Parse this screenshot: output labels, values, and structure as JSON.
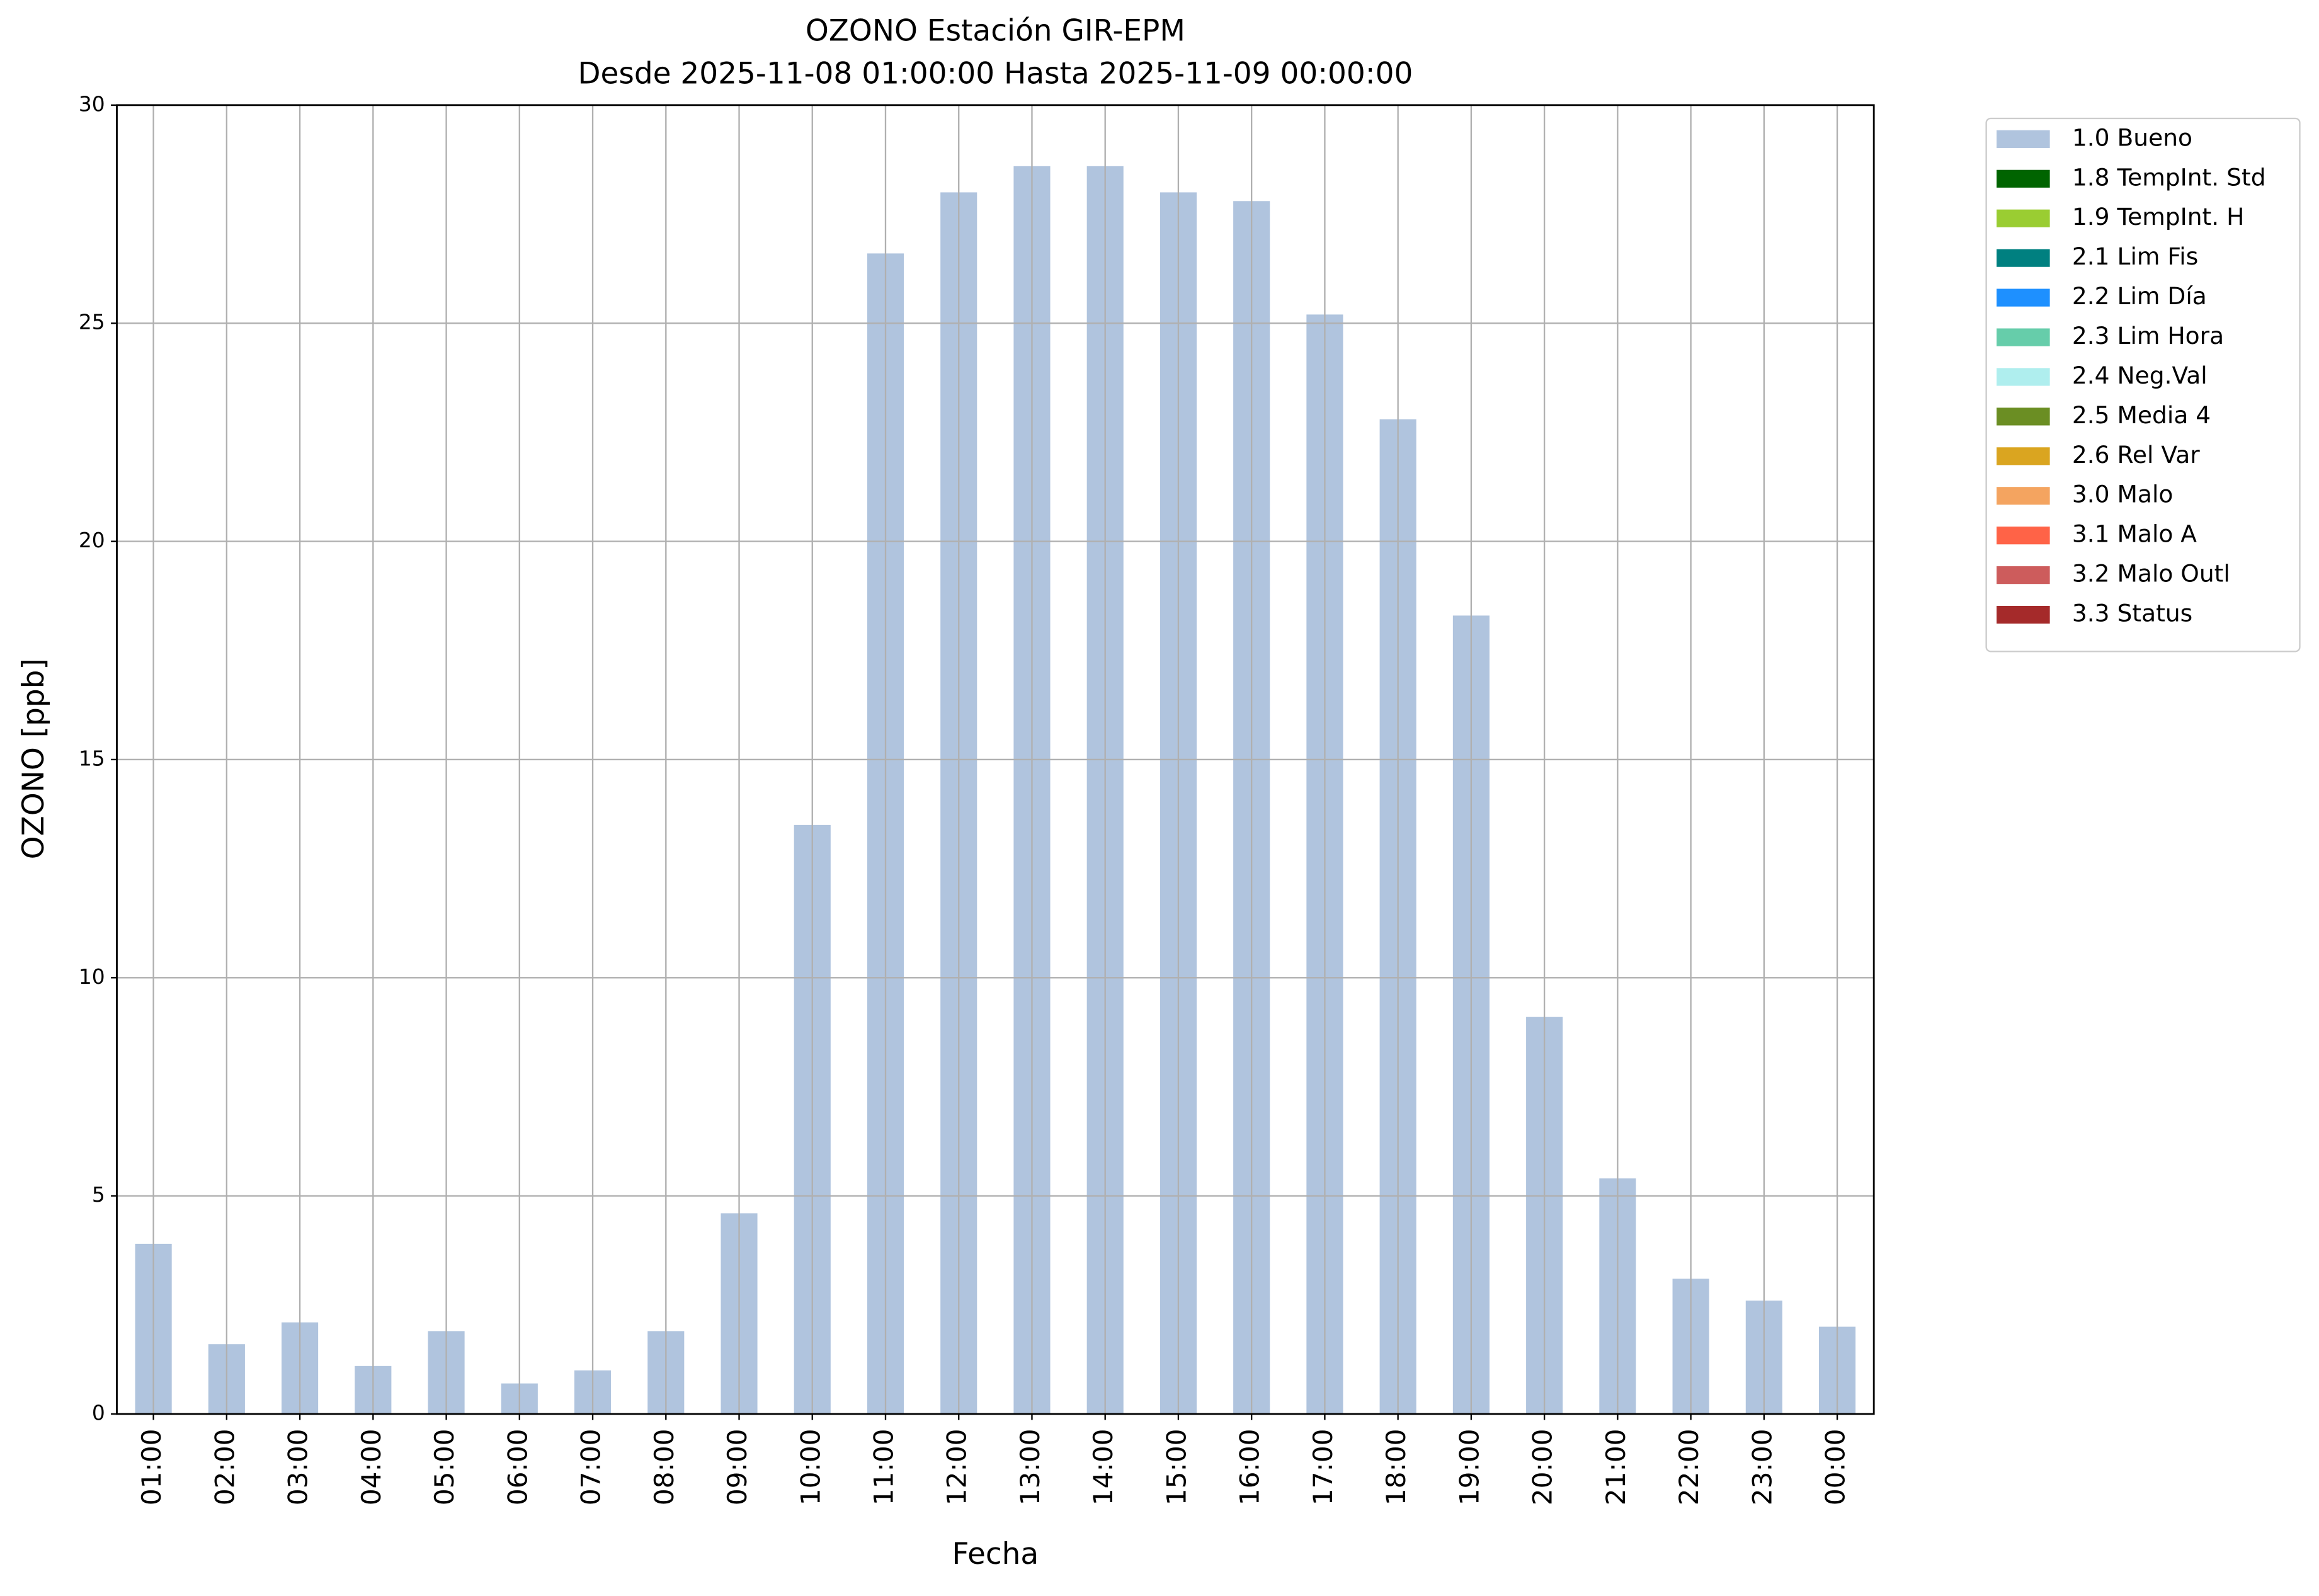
{
  "chart_data": {
    "type": "bar",
    "stacked": true,
    "title": "OZONO Estación GIR-EPM",
    "subtitle": "Desde 2025-11-08 01:00:00 Hasta 2025-11-09 00:00:00",
    "x_label": "Fecha",
    "y_label": "OZONO [ppb]",
    "categories": [
      "01:00",
      "02:00",
      "03:00",
      "04:00",
      "05:00",
      "06:00",
      "07:00",
      "08:00",
      "09:00",
      "10:00",
      "11:00",
      "12:00",
      "13:00",
      "14:00",
      "15:00",
      "16:00",
      "17:00",
      "18:00",
      "19:00",
      "20:00",
      "21:00",
      "22:00",
      "23:00",
      "00:00"
    ],
    "series": [
      {
        "name": "1.0 Bueno",
        "color": "#b0c4de",
        "values": [
          3.9,
          1.6,
          2.1,
          1.1,
          1.9,
          0.7,
          1.0,
          1.9,
          4.6,
          13.5,
          26.6,
          28.0,
          28.6,
          28.6,
          28.0,
          27.8,
          25.2,
          22.8,
          18.3,
          9.1,
          5.4,
          3.1,
          2.6,
          2.0
        ]
      },
      {
        "name": "1.8 TempInt. Std",
        "color": "#006400",
        "values": [
          0,
          0,
          0,
          0,
          0,
          0,
          0,
          0,
          0,
          0,
          0,
          0,
          0,
          0,
          0,
          0,
          0,
          0,
          0,
          0,
          0,
          0,
          0,
          0
        ]
      },
      {
        "name": "1.9 TempInt. H",
        "color": "#9acd32",
        "values": [
          0,
          0,
          0,
          0,
          0,
          0,
          0,
          0,
          0,
          0,
          0,
          0,
          0,
          0,
          0,
          0,
          0,
          0,
          0,
          0,
          0,
          0,
          0,
          0
        ]
      },
      {
        "name": "2.1 Lim Fis",
        "color": "#008080",
        "values": [
          0,
          0,
          0,
          0,
          0,
          0,
          0,
          0,
          0,
          0,
          0,
          0,
          0,
          0,
          0,
          0,
          0,
          0,
          0,
          0,
          0,
          0,
          0,
          0
        ]
      },
      {
        "name": "2.2 Lim Día",
        "color": "#1e90ff",
        "values": [
          0,
          0,
          0,
          0,
          0,
          0,
          0,
          0,
          0,
          0,
          0,
          0,
          0,
          0,
          0,
          0,
          0,
          0,
          0,
          0,
          0,
          0,
          0,
          0
        ]
      },
      {
        "name": "2.3 Lim Hora",
        "color": "#66cdaa",
        "values": [
          0,
          0,
          0,
          0,
          0,
          0,
          0,
          0,
          0,
          0,
          0,
          0,
          0,
          0,
          0,
          0,
          0,
          0,
          0,
          0,
          0,
          0,
          0,
          0
        ]
      },
      {
        "name": "2.4 Neg.Val",
        "color": "#afeeee",
        "values": [
          0,
          0,
          0,
          0,
          0,
          0,
          0,
          0,
          0,
          0,
          0,
          0,
          0,
          0,
          0,
          0,
          0,
          0,
          0,
          0,
          0,
          0,
          0,
          0
        ]
      },
      {
        "name": "2.5 Media 4",
        "color": "#6b8e23",
        "values": [
          0,
          0,
          0,
          0,
          0,
          0,
          0,
          0,
          0,
          0,
          0,
          0,
          0,
          0,
          0,
          0,
          0,
          0,
          0,
          0,
          0,
          0,
          0,
          0
        ]
      },
      {
        "name": "2.6 Rel Var",
        "color": "#daa520",
        "values": [
          0,
          0,
          0,
          0,
          0,
          0,
          0,
          0,
          0,
          0,
          0,
          0,
          0,
          0,
          0,
          0,
          0,
          0,
          0,
          0,
          0,
          0,
          0,
          0
        ]
      },
      {
        "name": "3.0 Malo",
        "color": "#f4a460",
        "values": [
          0,
          0,
          0,
          0,
          0,
          0,
          0,
          0,
          0,
          0,
          0,
          0,
          0,
          0,
          0,
          0,
          0,
          0,
          0,
          0,
          0,
          0,
          0,
          0
        ]
      },
      {
        "name": "3.1 Malo A",
        "color": "#ff6347",
        "values": [
          0,
          0,
          0,
          0,
          0,
          0,
          0,
          0,
          0,
          0,
          0,
          0,
          0,
          0,
          0,
          0,
          0,
          0,
          0,
          0,
          0,
          0,
          0,
          0
        ]
      },
      {
        "name": "3.2 Malo Outl",
        "color": "#cd5c5c",
        "values": [
          0,
          0,
          0,
          0,
          0,
          0,
          0,
          0,
          0,
          0,
          0,
          0,
          0,
          0,
          0,
          0,
          0,
          0,
          0,
          0,
          0,
          0,
          0,
          0
        ]
      },
      {
        "name": "3.3 Status",
        "color": "#a52a2a",
        "values": [
          0,
          0,
          0,
          0,
          0,
          0,
          0,
          0,
          0,
          0,
          0,
          0,
          0,
          0,
          0,
          0,
          0,
          0,
          0,
          0,
          0,
          0,
          0,
          0
        ]
      }
    ],
    "ylim": [
      0,
      30
    ],
    "yticks": [
      0,
      5,
      10,
      15,
      20,
      25,
      30
    ],
    "grid": true,
    "legend": "outside-right"
  }
}
